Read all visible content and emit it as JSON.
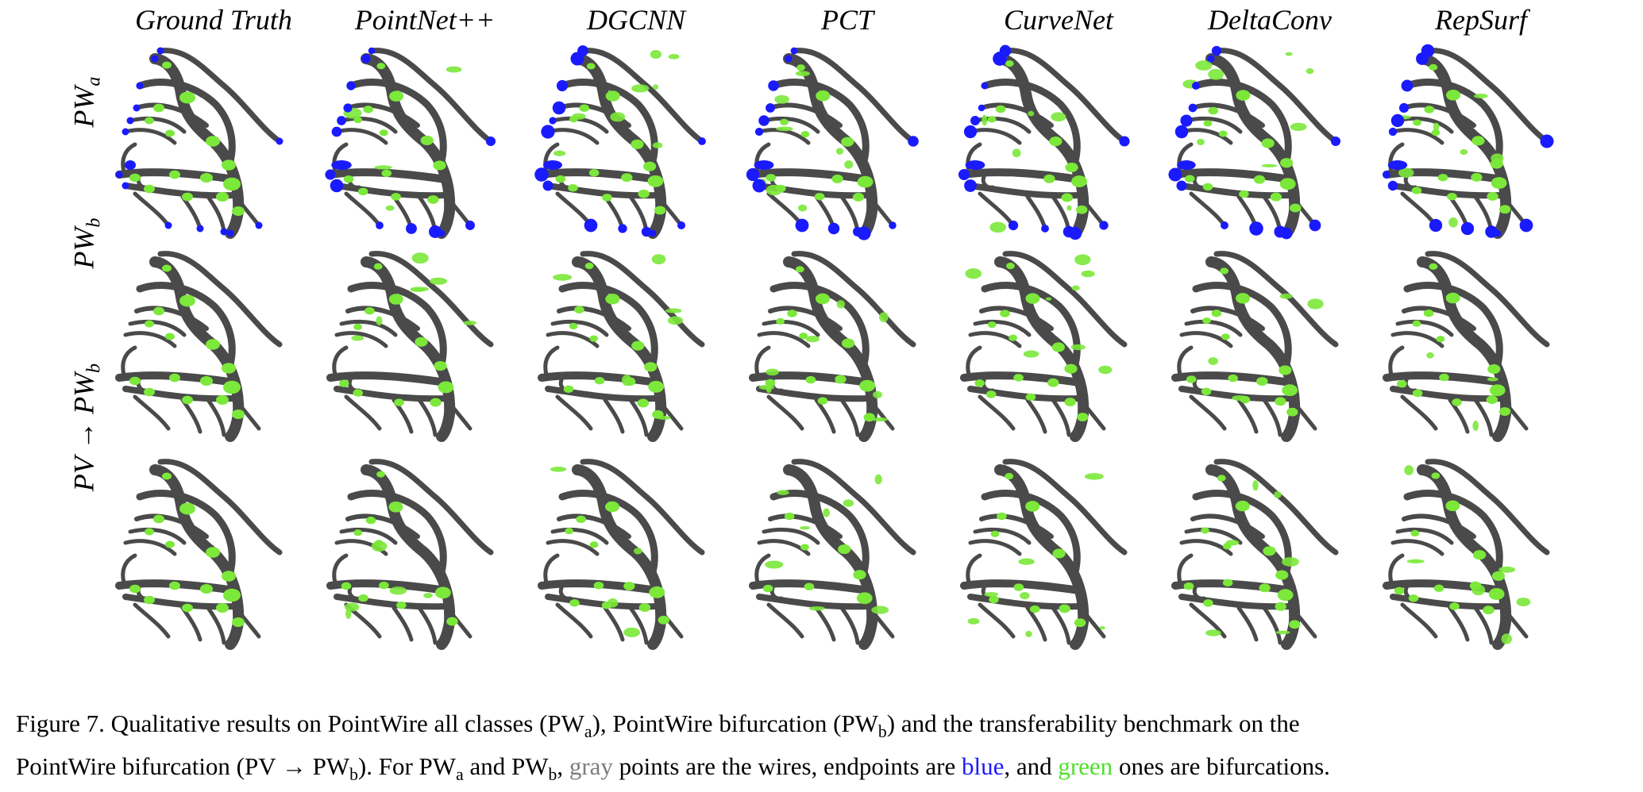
{
  "columns": [
    "Ground Truth",
    "PointNet++",
    "DGCNN",
    "PCT",
    "CurveNet",
    "DeltaConv",
    "RepSurf"
  ],
  "rows": [
    {
      "label_main": "PW",
      "label_sub": "a"
    },
    {
      "label_main": "PW",
      "label_sub": "b"
    },
    {
      "label_main": "PV → PW",
      "label_sub": "b"
    }
  ],
  "colors": {
    "wire": "#4a4a4a",
    "endpoint": "#1a1aff",
    "bifurcation": "#7be83a"
  },
  "caption": {
    "line1_a": "Figure 7.  Qualitative results on PointWire all classes (PW",
    "line1_a_sub": "a",
    "line1_b": "), PointWire bifurcation (PW",
    "line1_b_sub": "b",
    "line1_c": ") and the transferability benchmark on the",
    "line2_a": "PointWire bifurcation (PV → PW",
    "line2_a_sub": "b",
    "line2_b": "). For PW",
    "line2_b_sub": "a",
    "line2_c": " and PW",
    "line2_c_sub": "b",
    "line2_d": ", ",
    "word_gray": "gray",
    "line2_e": " points are the wires, endpoints are ",
    "word_blue": "blue",
    "line2_f": ", and ",
    "word_green": "green",
    "line2_g": " ones are bifurcations."
  }
}
